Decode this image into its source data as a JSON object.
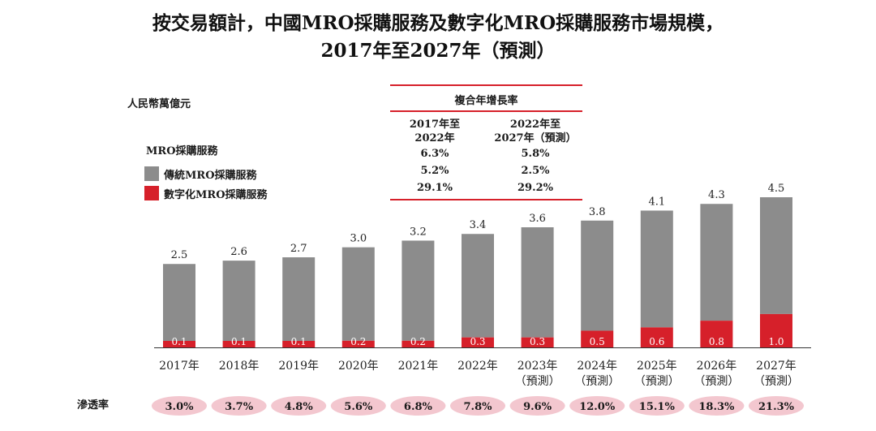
{
  "title_line1": "按交易額計，中國MRO採購服務及數字化MRO採購服務市場規模，",
  "title_line2": "2017年至2027年（預測）",
  "unit_label": "人民幣萬億元",
  "legend": {
    "title": "MRO採購服務",
    "items": [
      {
        "label": "傳統MRO採購服務",
        "color": "#8c8c8c"
      },
      {
        "label": "數字化MRO採購服務",
        "color": "#d6202a"
      }
    ]
  },
  "cagr": {
    "title": "複合年增長率",
    "columns": [
      {
        "header_line1": "2017年至",
        "header_line2": "2022年",
        "values": [
          "6.3%",
          "5.2%",
          "29.1%"
        ]
      },
      {
        "header_line1": "2022年至",
        "header_line2": "2027年（預測）",
        "values": [
          "5.8%",
          "2.5%",
          "29.2%"
        ]
      }
    ]
  },
  "penetration_label": "滲透率",
  "colors": {
    "traditional": "#8c8c8c",
    "digital": "#d6202a",
    "penetration_bg": "#f3c7cf",
    "accent_line": "#d6202a"
  },
  "chart_data": {
    "type": "bar",
    "stacked": true,
    "title": "按交易額計，中國MRO採購服務及數字化MRO採購服務市場規模，2017年至2027年（預測）",
    "ylabel": "人民幣萬億元",
    "ylim": [
      0,
      4.5
    ],
    "categories": [
      {
        "year": "2017年",
        "sub": ""
      },
      {
        "year": "2018年",
        "sub": ""
      },
      {
        "year": "2019年",
        "sub": ""
      },
      {
        "year": "2020年",
        "sub": ""
      },
      {
        "year": "2021年",
        "sub": ""
      },
      {
        "year": "2022年",
        "sub": ""
      },
      {
        "year": "2023年",
        "sub": "（預測）"
      },
      {
        "year": "2024年",
        "sub": "（預測）"
      },
      {
        "year": "2025年",
        "sub": "（預測）"
      },
      {
        "year": "2026年",
        "sub": "（預測）"
      },
      {
        "year": "2027年",
        "sub": "（預測）"
      }
    ],
    "totals": [
      "2.5",
      "2.6",
      "2.7",
      "3.0",
      "3.2",
      "3.4",
      "3.6",
      "3.8",
      "4.1",
      "4.3",
      "4.5"
    ],
    "series": [
      {
        "name": "數字化MRO採購服務",
        "values": [
          "0.1",
          "0.1",
          "0.1",
          "0.2",
          "0.2",
          "0.3",
          "0.3",
          "0.5",
          "0.6",
          "0.8",
          "1.0"
        ]
      },
      {
        "name": "傳統MRO採購服務",
        "values": [
          2.4,
          2.5,
          2.6,
          2.8,
          3.0,
          3.1,
          3.3,
          3.3,
          3.5,
          3.5,
          3.5
        ]
      }
    ],
    "penetration": [
      "3.0%",
      "3.7%",
      "4.8%",
      "5.6%",
      "6.8%",
      "7.8%",
      "9.6%",
      "12.0%",
      "15.1%",
      "18.3%",
      "21.3%"
    ]
  }
}
